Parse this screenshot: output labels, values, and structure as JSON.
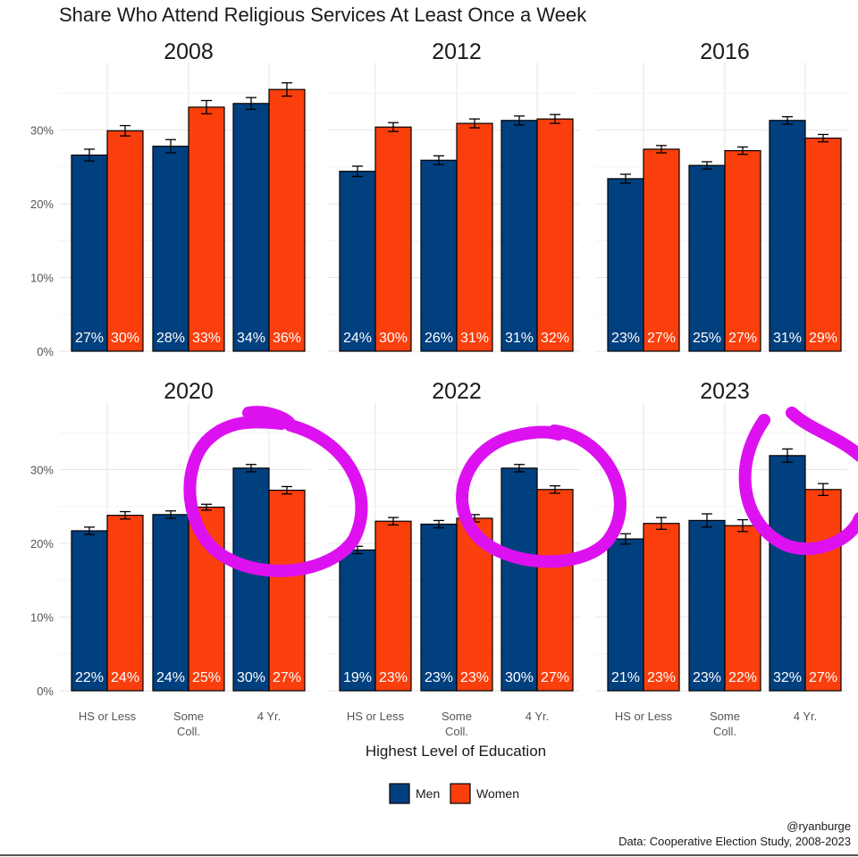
{
  "chart_data": {
    "type": "bar",
    "title": "Share Who Attend Religious Services At Least Once a Week",
    "xlabel": "Highest Level of Education",
    "ylabel": "",
    "ylim": [
      0,
      40
    ],
    "y_ticks": [
      0,
      10,
      20,
      30
    ],
    "y_tick_labels": [
      "0%",
      "10%",
      "20%",
      "30%"
    ],
    "categories": [
      "HS or Less",
      "Some\nColl.",
      "4 Yr."
    ],
    "category_labels": [
      [
        "HS or Less"
      ],
      [
        "Some",
        "Coll."
      ],
      [
        "4 Yr."
      ]
    ],
    "legend": [
      {
        "name": "Men",
        "color": "#00407f"
      },
      {
        "name": "Women",
        "color": "#fb3f0c"
      }
    ],
    "facets": [
      {
        "year": "2008",
        "series": [
          {
            "name": "Men",
            "values": [
              26.6,
              27.8,
              33.6
            ],
            "err": [
              0.8,
              0.9,
              0.8
            ],
            "labels": [
              "27%",
              "28%",
              "34%"
            ]
          },
          {
            "name": "Women",
            "values": [
              29.9,
              33.1,
              35.5
            ],
            "err": [
              0.7,
              0.9,
              0.9
            ],
            "labels": [
              "30%",
              "33%",
              "36%"
            ]
          }
        ]
      },
      {
        "year": "2012",
        "series": [
          {
            "name": "Men",
            "values": [
              24.4,
              25.9,
              31.3
            ],
            "err": [
              0.7,
              0.6,
              0.6
            ],
            "labels": [
              "24%",
              "26%",
              "31%"
            ]
          },
          {
            "name": "Women",
            "values": [
              30.4,
              30.9,
              31.5
            ],
            "err": [
              0.6,
              0.6,
              0.6
            ],
            "labels": [
              "30%",
              "31%",
              "32%"
            ]
          }
        ]
      },
      {
        "year": "2016",
        "series": [
          {
            "name": "Men",
            "values": [
              23.4,
              25.2,
              31.3
            ],
            "err": [
              0.6,
              0.5,
              0.5
            ],
            "labels": [
              "23%",
              "25%",
              "31%"
            ]
          },
          {
            "name": "Women",
            "values": [
              27.4,
              27.2,
              28.9
            ],
            "err": [
              0.5,
              0.5,
              0.5
            ],
            "labels": [
              "27%",
              "27%",
              "29%"
            ]
          }
        ]
      },
      {
        "year": "2020",
        "series": [
          {
            "name": "Men",
            "values": [
              21.7,
              23.9,
              30.2
            ],
            "err": [
              0.5,
              0.5,
              0.5
            ],
            "labels": [
              "22%",
              "24%",
              "30%"
            ]
          },
          {
            "name": "Women",
            "values": [
              23.8,
              24.9,
              27.2
            ],
            "err": [
              0.5,
              0.4,
              0.5
            ],
            "labels": [
              "24%",
              "25%",
              "27%"
            ]
          }
        ]
      },
      {
        "year": "2022",
        "series": [
          {
            "name": "Men",
            "values": [
              19.1,
              22.6,
              30.2
            ],
            "err": [
              0.5,
              0.5,
              0.5
            ],
            "labels": [
              "19%",
              "23%",
              "30%"
            ]
          },
          {
            "name": "Women",
            "values": [
              23.0,
              23.4,
              27.3
            ],
            "err": [
              0.5,
              0.5,
              0.5
            ],
            "labels": [
              "23%",
              "23%",
              "27%"
            ]
          }
        ]
      },
      {
        "year": "2023",
        "series": [
          {
            "name": "Men",
            "values": [
              20.6,
              23.1,
              31.9
            ],
            "err": [
              0.7,
              0.9,
              0.9
            ],
            "labels": [
              "21%",
              "23%",
              "32%"
            ]
          },
          {
            "name": "Women",
            "values": [
              22.7,
              22.4,
              27.3
            ],
            "err": [
              0.8,
              0.8,
              0.8
            ],
            "labels": [
              "23%",
              "22%",
              "27%"
            ]
          }
        ]
      }
    ],
    "annotations": [
      "Hand-drawn magenta circles around the 4 Yr. bars in 2020, 2022 and 2023"
    ],
    "highlight_color": "#dd11f0"
  },
  "caption": {
    "handle": "@ryanburge",
    "source": "Data: Cooperative Election Study, 2008-2023"
  }
}
